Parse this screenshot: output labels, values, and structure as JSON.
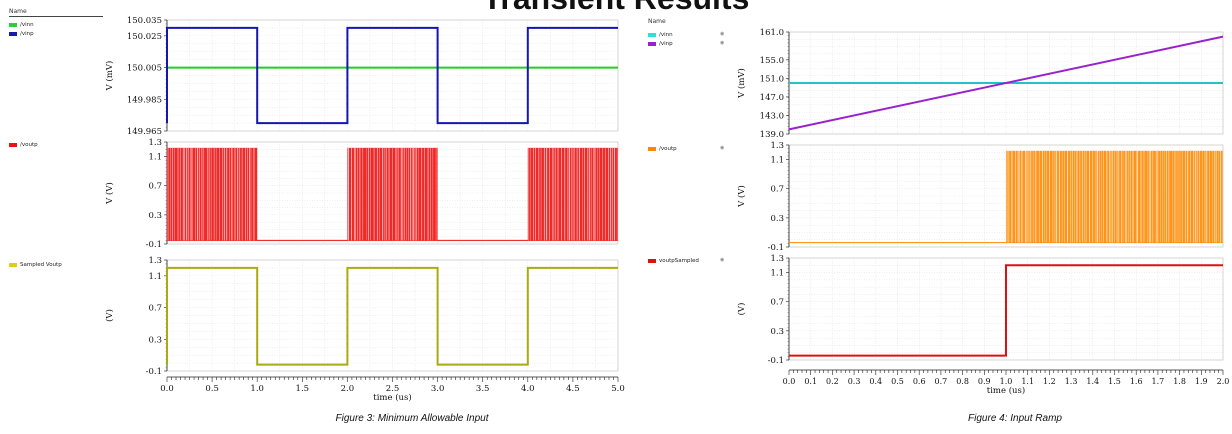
{
  "page": {
    "title": "Transient Results",
    "caption_left": "Figure 3: Minimum Allowable Input",
    "caption_right": "Figure 4: Input Ramp"
  },
  "left_legend": {
    "header": "Name",
    "items": [
      {
        "label": "/vinn",
        "color": "#33cc33",
        "panel": 0
      },
      {
        "label": "/vinp",
        "color": "#1a1aaa",
        "panel": 0
      },
      {
        "label": "/voutp",
        "color": "#ee1111",
        "panel": 1
      },
      {
        "label": "Sampled Voutp",
        "color": "#ddcc22",
        "panel": 2
      }
    ]
  },
  "right_legend": {
    "header": "Name",
    "items": [
      {
        "label": "/vinn",
        "color": "#33dddd",
        "panel": 0
      },
      {
        "label": "/vinp",
        "color": "#9922cc",
        "panel": 0
      },
      {
        "label": "/voutp",
        "color": "#ff8800",
        "panel": 1
      },
      {
        "label": "voutpSampled",
        "color": "#dd1111",
        "panel": 2
      }
    ]
  },
  "chart_data": [
    {
      "type": "line",
      "figure": "Figure 3: Minimum Allowable Input",
      "xlabel": "time (us)",
      "xlim": [
        0,
        5
      ],
      "xticks": [
        "0.0",
        "0.5",
        "1.0",
        "1.5",
        "2.0",
        "2.5",
        "3.0",
        "3.5",
        "4.0",
        "4.5",
        "5.0"
      ],
      "panels": [
        {
          "ylabel": "V (mV)",
          "ylim": [
            149.965,
            150.035
          ],
          "yticks": [
            "150.035",
            "150.025",
            "150.005",
            "149.985",
            "149.965"
          ],
          "series": [
            {
              "name": "/vinn",
              "color": "#22cc22",
              "x": [
                0,
                5
              ],
              "y": [
                150.005,
                150.005
              ]
            },
            {
              "name": "/vinp",
              "color": "#1515b0",
              "x": [
                0,
                0,
                1,
                1,
                2,
                2,
                3,
                3,
                4,
                4,
                5
              ],
              "y": [
                149.97,
                150.03,
                150.03,
                149.97,
                149.97,
                150.03,
                150.03,
                149.97,
                149.97,
                150.03,
                150.03
              ]
            }
          ]
        },
        {
          "ylabel": "V (V)",
          "ylim": [
            -0.1,
            1.3
          ],
          "yticks": [
            "1.3",
            "1.1",
            "0.7",
            "0.3",
            "-0.1"
          ],
          "series": [
            {
              "name": "/voutp",
              "color": "#ee1111",
              "kind": "toggling",
              "low": -0.05,
              "high": 1.22,
              "active": [
                [
                  0,
                  1
                ],
                [
                  2,
                  3
                ],
                [
                  4,
                  5
                ]
              ]
            }
          ]
        },
        {
          "ylabel": "(V)",
          "ylim": [
            -0.1,
            1.3
          ],
          "yticks": [
            "1.3",
            "1.1",
            "0.7",
            "0.3",
            "-0.1"
          ],
          "series": [
            {
              "name": "Sampled Voutp",
              "color": "#aaaa11",
              "x": [
                0,
                0,
                1,
                1,
                2,
                2,
                3,
                3,
                4,
                4,
                5
              ],
              "y": [
                -0.02,
                1.2,
                1.2,
                -0.02,
                -0.02,
                1.2,
                1.2,
                -0.02,
                -0.02,
                1.2,
                1.2
              ]
            }
          ]
        }
      ]
    },
    {
      "type": "line",
      "figure": "Figure 4: Input Ramp",
      "xlabel": "time (us)",
      "xlim": [
        0,
        2
      ],
      "xticks": [
        "0.0",
        "0.1",
        "0.2",
        "0.3",
        "0.4",
        "0.5",
        "0.6",
        "0.7",
        "0.8",
        "0.9",
        "1.0",
        "1.1",
        "1.2",
        "1.3",
        "1.4",
        "1.5",
        "1.6",
        "1.7",
        "1.8",
        "1.9",
        "2.0"
      ],
      "panels": [
        {
          "ylabel": "V (mV)",
          "ylim": [
            139.0,
            161.0
          ],
          "yticks": [
            "161.0",
            "155.0",
            "151.0",
            "147.0",
            "143.0",
            "139.0"
          ],
          "series": [
            {
              "name": "/vinn",
              "color": "#22c4c4",
              "x": [
                0,
                2
              ],
              "y": [
                150,
                150
              ]
            },
            {
              "name": "/vinp",
              "color": "#9922cc",
              "x": [
                0,
                2
              ],
              "y": [
                140,
                160
              ]
            }
          ]
        },
        {
          "ylabel": "V (V)",
          "ylim": [
            -0.1,
            1.3
          ],
          "yticks": [
            "1.3",
            "1.1",
            "0.7",
            "0.3",
            "-0.1"
          ],
          "series": [
            {
              "name": "/voutp",
              "color": "#ff8800",
              "kind": "toggling",
              "low": -0.04,
              "high": 1.22,
              "active": [
                [
                  1.0,
                  2.0
                ]
              ]
            }
          ]
        },
        {
          "ylabel": "(V)",
          "ylim": [
            -0.1,
            1.3
          ],
          "yticks": [
            "1.3",
            "1.1",
            "0.7",
            "0.3",
            "-0.1"
          ],
          "series": [
            {
              "name": "voutpSampled",
              "color": "#dd1111",
              "x": [
                0,
                1,
                1,
                2
              ],
              "y": [
                -0.04,
                -0.04,
                1.2,
                1.2
              ]
            }
          ]
        }
      ]
    }
  ]
}
